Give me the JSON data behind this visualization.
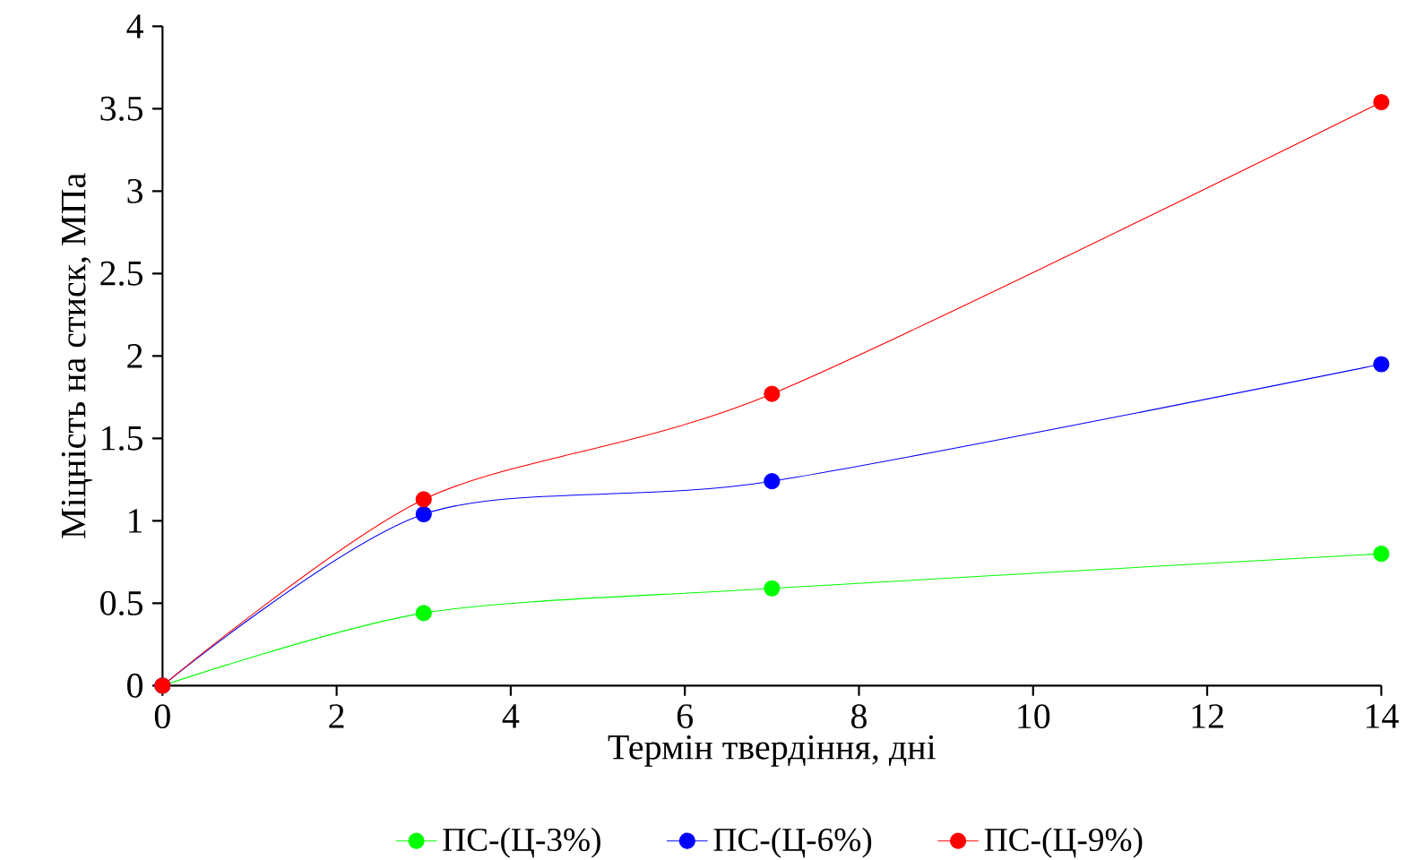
{
  "chart_data": {
    "type": "line",
    "xlabel": "Термін твердіння, дні",
    "ylabel": "Міцність на стиск, МПа",
    "x": [
      0,
      3,
      7,
      14
    ],
    "xlim": [
      0,
      14
    ],
    "xticks": [
      0,
      2,
      4,
      6,
      8,
      10,
      12,
      14
    ],
    "ylim": [
      0,
      4
    ],
    "yticks": [
      0,
      0.5,
      1,
      1.5,
      2,
      2.5,
      3,
      3.5,
      4
    ],
    "marker": "circle",
    "grid": false,
    "legend": "bottom",
    "series": [
      {
        "name": "ПС-(Ц-3%)",
        "color": "#00ff00",
        "values": [
          0,
          0.44,
          0.59,
          0.8
        ]
      },
      {
        "name": "ПС-(Ц-6%)",
        "color": "#0000ff",
        "values": [
          0,
          1.04,
          1.24,
          1.95
        ]
      },
      {
        "name": "ПС-(Ц-9%)",
        "color": "#ff0000",
        "values": [
          0,
          1.13,
          1.77,
          3.54
        ]
      }
    ]
  }
}
